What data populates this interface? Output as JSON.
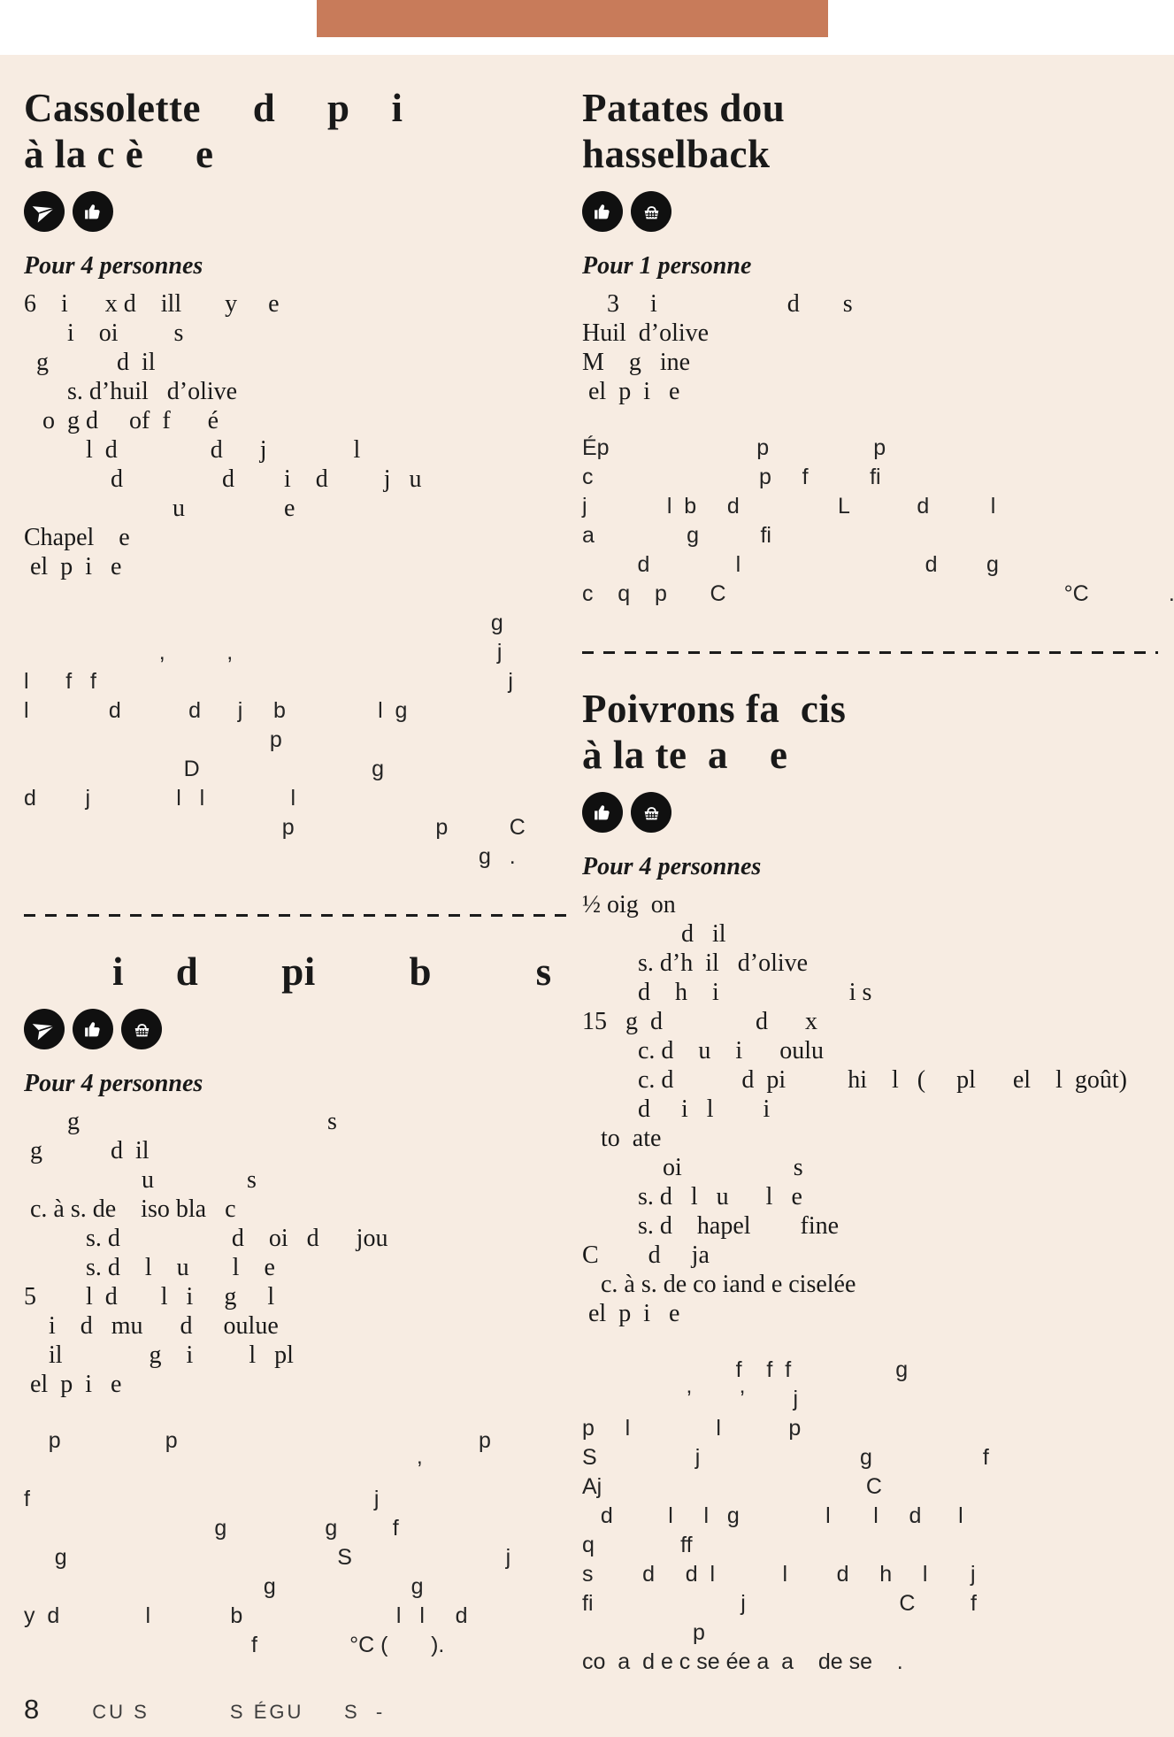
{
  "colors": {
    "background": "#f7ece2",
    "header_band": "#ffffff",
    "top_bar": "#c87b5a",
    "icon_circle": "#101010",
    "text": "#191919"
  },
  "recipes": [
    {
      "id": "cassolette",
      "title_lines": [
        "Cassolette     d     p    i",
        "à la c è     e"
      ],
      "icons": [
        "send-icon",
        "thumbs-up-icon"
      ],
      "serves": "Pour 4 personnes",
      "ingredients": [
        "6    i      x d    ill       y     e",
        "       i    oi         s",
        "  g           d  il",
        "       s. d’huil   d’olive",
        "   o  g d     of  f      é",
        "          l  d               d      j              l",
        "              d                d        i    d         j   u",
        "                        u                e",
        "Chapel    e",
        " el  p  i   e"
      ],
      "steps": [
        "                                                                            g",
        "                      ,          ,                                           j",
        "l      f   f                                                                   j",
        "l             d           d      j     b               l  g",
        "                                        p",
        "                          D                            g",
        "d        j              l   l              l",
        "                                          p                       p          C",
        "                                                                          g   ."
      ]
    },
    {
      "id": "left-second",
      "title_lines": [
        "i     d        pi         b          s"
      ],
      "icons": [
        "send-icon",
        "thumbs-up-icon",
        "basket-icon"
      ],
      "serves": "Pour 4 personnes",
      "ingredients": [
        "       g                                        s",
        " g           d  il",
        "                   u               s",
        " c. à s. de    iso bla   c",
        "          s. d                  d    oi   d      jou",
        "          s. d    l    u       l    e",
        "5        l  d       l   i     g     l",
        "    i    d   mu      d     oulue",
        "    il              g    i         l   pl",
        " el  p  i   e"
      ],
      "steps": [
        "    p                 p                                                 p",
        "                                                                ’",
        "f                                                        j",
        "                               g                g         f",
        "     g                                            S                         j",
        "                                       g                      g",
        "y  d              l             b                         l   l     d",
        "                                     f               °C (       )."
      ]
    },
    {
      "id": "patates",
      "title_lines": [
        "Patates dou",
        "hasselback"
      ],
      "icons": [
        "thumbs-up-icon",
        "basket-icon"
      ],
      "serves": "Pour 1 personne",
      "ingredients": [
        "    3     i                     d       s",
        "Huil  d’olive",
        "M    g   ine",
        " el  p  i   e"
      ],
      "steps": [
        "Ép                        p                 p",
        "c                           p     f          fi",
        "j             l  b     d                L           d          l",
        "a               g          fi",
        "         d              l                              d        g",
        "c    q    p       C                                                       °C             ."
      ]
    },
    {
      "id": "poivrons",
      "title_lines": [
        "Poivrons fa  cis",
        "à la te  a    e"
      ],
      "icons": [
        "thumbs-up-icon",
        "basket-icon"
      ],
      "serves": "Pour 4 personnes",
      "ingredients": [
        "½ oig  on",
        "                d   il",
        "         s. d’h  il   d’olive",
        "         d    h    i                     i s",
        "15   g  d               d      x",
        "         c. d    u    i      oulu",
        "         c. d           d  pi          hi    l   (     pl      el    l  goût)",
        "         d     i   l        i",
        "   to  ate",
        "             oi                  s",
        "         s. d   l   u      l   e",
        "         s. d    hapel        fine",
        "C        d     ja",
        "   c. à s. de co iand e ciselée",
        " el  p  i   e"
      ],
      "steps": [
        "                         f    f  f                 g",
        "                 ’        ’        j",
        "p     l              l           p",
        "S                j                          g                  f",
        "Aj                                           C",
        "   d         l     l   g              l       l     d      l",
        "q              ff",
        "s        d     d  l           l        d     h     l       j",
        "fi                        j                         C         f",
        "                  p",
        "co  a  d e c se ée a  a    de se    ."
      ]
    }
  ],
  "footer": {
    "page_number": "8",
    "label": "CU S          S ÉGU     S  -"
  }
}
